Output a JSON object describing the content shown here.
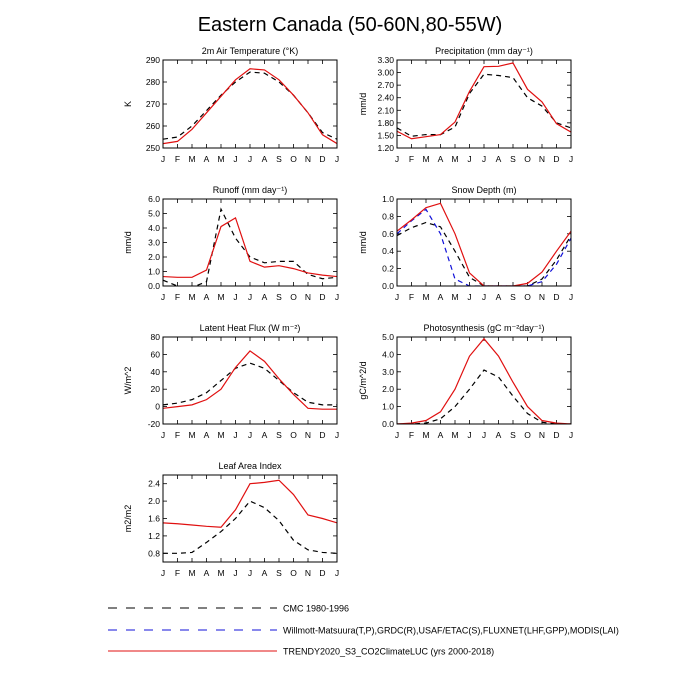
{
  "title": "Eastern Canada (50-60N,80-55W)",
  "months": [
    "J",
    "F",
    "M",
    "A",
    "M",
    "J",
    "J",
    "A",
    "S",
    "O",
    "N",
    "D",
    "J"
  ],
  "styles": {
    "cmc": {
      "color": "#000000",
      "dash": "5,4"
    },
    "willmott": {
      "color": "#1010d8",
      "dash": "5,4"
    },
    "trendy": {
      "color": "#e01010",
      "dash": ""
    }
  },
  "legend": [
    {
      "key": "cmc",
      "label": "CMC 1980-1996"
    },
    {
      "key": "willmott",
      "label": "Willmott-Matsuura(T,P),GRDC(R),USAF/ETAC(S),FLUXNET(LHF,GPP),MODIS(LAI)"
    },
    {
      "key": "trendy",
      "label": "TRENDY2020_S3_CO2ClimateLUC (yrs 2000-2018)"
    }
  ],
  "chart_data": [
    {
      "type": "line",
      "title": "2m Air Temperature",
      "unit": "(°K)",
      "ylabel": "K",
      "ylim": [
        250,
        290
      ],
      "yticks": [
        250,
        260,
        270,
        280,
        290
      ],
      "ytick_labels": [
        "250",
        "260",
        "270",
        "280",
        "290"
      ],
      "series": [
        {
          "key": "cmc",
          "values": [
            254,
            255,
            260,
            267,
            274,
            280,
            284.5,
            284,
            280,
            274,
            266,
            257,
            254
          ]
        },
        {
          "key": "trendy",
          "values": [
            252,
            253,
            258.5,
            266,
            273.5,
            281,
            286,
            285.5,
            281,
            274,
            266,
            256,
            252
          ]
        }
      ]
    },
    {
      "type": "line",
      "title": "Precipitation",
      "unit": "(mm day⁻¹)",
      "ylabel": "mm/d",
      "ylim": [
        1.2,
        3.3
      ],
      "yticks": [
        1.2,
        1.5,
        1.8,
        2.1,
        2.4,
        2.7,
        3.0,
        3.3
      ],
      "ytick_labels": [
        "1.20",
        "1.50",
        "1.80",
        "2.10",
        "2.40",
        "2.70",
        "3.00",
        "3.30"
      ],
      "series": [
        {
          "key": "cmc",
          "values": [
            1.68,
            1.48,
            1.52,
            1.52,
            1.7,
            2.5,
            2.96,
            2.93,
            2.88,
            2.4,
            2.2,
            1.8,
            1.68
          ]
        },
        {
          "key": "trendy",
          "values": [
            1.6,
            1.42,
            1.47,
            1.52,
            1.82,
            2.55,
            3.14,
            3.15,
            3.23,
            2.6,
            2.3,
            1.78,
            1.58
          ]
        }
      ]
    },
    {
      "type": "line",
      "title": "Runoff",
      "unit": "(mm day⁻¹)",
      "ylabel": "mm/d",
      "ylim": [
        0,
        6
      ],
      "yticks": [
        0,
        1,
        2,
        3,
        4,
        5,
        6
      ],
      "ytick_labels": [
        "0.0",
        "1.0",
        "2.0",
        "3.0",
        "4.0",
        "5.0",
        "6.0"
      ],
      "series": [
        {
          "key": "cmc",
          "values": [
            0.4,
            0.0,
            -0.1,
            0.3,
            5.3,
            3.3,
            2.0,
            1.6,
            1.7,
            1.7,
            0.8,
            0.5,
            0.6
          ]
        },
        {
          "key": "trendy",
          "values": [
            0.65,
            0.6,
            0.6,
            1.1,
            4.1,
            4.7,
            1.7,
            1.3,
            1.4,
            1.2,
            0.9,
            0.75,
            0.65
          ]
        }
      ]
    },
    {
      "type": "line",
      "title": "Snow Depth",
      "unit": "(m)",
      "ylabel": "mm/d",
      "ylim": [
        0,
        1.0
      ],
      "yticks": [
        0,
        0.2,
        0.4,
        0.6,
        0.8,
        1.0
      ],
      "ytick_labels": [
        "0.0",
        "0.2",
        "0.4",
        "0.6",
        "0.8",
        "1.0"
      ],
      "series": [
        {
          "key": "cmc",
          "values": [
            0.58,
            0.67,
            0.73,
            0.68,
            0.4,
            0.1,
            0.0,
            0.0,
            0.0,
            0.0,
            0.08,
            0.3,
            0.58
          ]
        },
        {
          "key": "willmott",
          "values": [
            0.6,
            0.75,
            0.88,
            0.6,
            0.08,
            0.0,
            0.0,
            0.0,
            0.0,
            0.0,
            0.05,
            0.25,
            0.55
          ]
        },
        {
          "key": "trendy",
          "values": [
            0.63,
            0.76,
            0.9,
            0.95,
            0.6,
            0.15,
            0.0,
            0.0,
            0.0,
            0.03,
            0.16,
            0.4,
            0.63
          ]
        }
      ]
    },
    {
      "type": "line",
      "title": "Latent Heat Flux",
      "unit": "(W m⁻²)",
      "ylabel": "W/m^2",
      "ylim": [
        -20,
        80
      ],
      "yticks": [
        -20,
        0,
        20,
        40,
        60,
        80
      ],
      "ytick_labels": [
        "-20",
        "0",
        "20",
        "40",
        "60",
        "80"
      ],
      "series": [
        {
          "key": "cmc",
          "values": [
            2,
            4,
            8,
            16,
            30,
            44,
            50,
            44,
            30,
            16,
            5,
            2,
            2
          ]
        },
        {
          "key": "trendy",
          "values": [
            -2,
            0,
            2,
            8,
            20,
            45,
            64,
            52,
            32,
            14,
            -2,
            -3,
            -3
          ]
        }
      ]
    },
    {
      "type": "line",
      "title": "Photosynthesis",
      "unit": "(gC m⁻²day⁻¹)",
      "ylabel": "gC/m^2/d",
      "ylim": [
        0,
        5
      ],
      "yticks": [
        0,
        1,
        2,
        3,
        4,
        5
      ],
      "ytick_labels": [
        "0.0",
        "1.0",
        "2.0",
        "3.0",
        "4.0",
        "5.0"
      ],
      "series": [
        {
          "key": "cmc",
          "values": [
            0.0,
            0.0,
            0.05,
            0.3,
            1.0,
            2.0,
            3.1,
            2.7,
            1.6,
            0.6,
            0.1,
            0.0,
            0.0
          ]
        },
        {
          "key": "trendy",
          "values": [
            0.0,
            0.05,
            0.2,
            0.7,
            2.0,
            3.9,
            4.9,
            3.9,
            2.4,
            1.0,
            0.2,
            0.05,
            0.0
          ]
        }
      ]
    },
    {
      "type": "line",
      "title": "Leaf Area Index",
      "unit": "",
      "ylabel": "m2/m2",
      "ylim": [
        0.6,
        2.6
      ],
      "yticks": [
        0.8,
        1.2,
        1.6,
        2.0,
        2.4
      ],
      "ytick_labels": [
        "0.8",
        "1.2",
        "1.6",
        "2.0",
        "2.4"
      ],
      "series": [
        {
          "key": "cmc",
          "values": [
            0.8,
            0.8,
            0.82,
            1.05,
            1.3,
            1.6,
            2.0,
            1.85,
            1.55,
            1.1,
            0.88,
            0.82,
            0.8
          ]
        },
        {
          "key": "trendy",
          "values": [
            1.5,
            1.48,
            1.45,
            1.42,
            1.4,
            1.8,
            2.4,
            2.43,
            2.48,
            2.15,
            1.68,
            1.6,
            1.5
          ]
        }
      ]
    }
  ]
}
